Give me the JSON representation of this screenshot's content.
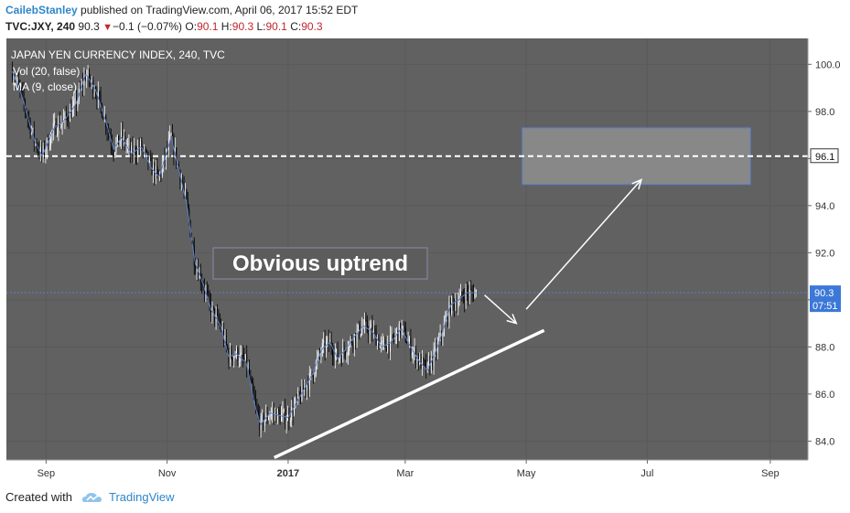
{
  "header": {
    "author": "CailebStanley",
    "published_text": "published on TradingView.com, April 06, 2017 15:52 EDT",
    "symbol": "TVC:JXY, 240",
    "last": "90.3",
    "change": "−0.1 (−0.07%)",
    "o_label": "O:",
    "o_value": "90.1",
    "h_label": "H:",
    "h_value": "90.3",
    "l_label": "L:",
    "l_value": "90.1",
    "c_label": "C:",
    "c_value": "90.3"
  },
  "chart_data": {
    "type": "candlestick",
    "title": "JAPAN YEN CURRENCY INDEX, 240, TVC",
    "indicators": [
      "Vol (20, false)",
      "MA (9, close)"
    ],
    "x_ticks": [
      "Sep",
      "Nov",
      "2017",
      "Mar",
      "May",
      "Jul",
      "Sep"
    ],
    "y_ticks": [
      84.0,
      86.0,
      88.0,
      90.0,
      92.0,
      94.0,
      96.0,
      98.0,
      100.0
    ],
    "ylim": [
      83.2,
      101.1
    ],
    "price_series": [
      [
        "2016-08-15",
        99.7
      ],
      [
        "2016-08-20",
        98.6
      ],
      [
        "2016-08-26",
        96.8
      ],
      [
        "2016-08-30",
        96.1
      ],
      [
        "2016-09-05",
        97.3
      ],
      [
        "2016-09-10",
        97.6
      ],
      [
        "2016-09-16",
        98.3
      ],
      [
        "2016-09-21",
        99.6
      ],
      [
        "2016-09-26",
        98.9
      ],
      [
        "2016-10-01",
        97.6
      ],
      [
        "2016-10-05",
        96.4
      ],
      [
        "2016-10-09",
        96.9
      ],
      [
        "2016-10-14",
        96.2
      ],
      [
        "2016-10-19",
        96.5
      ],
      [
        "2016-10-24",
        95.6
      ],
      [
        "2016-10-28",
        95.2
      ],
      [
        "2016-11-03",
        96.9
      ],
      [
        "2016-11-07",
        95.5
      ],
      [
        "2016-11-11",
        94.0
      ],
      [
        "2016-11-15",
        91.6
      ],
      [
        "2016-11-19",
        90.7
      ],
      [
        "2016-11-23",
        89.6
      ],
      [
        "2016-11-28",
        88.9
      ],
      [
        "2016-12-02",
        87.6
      ],
      [
        "2016-12-06",
        87.7
      ],
      [
        "2016-12-11",
        87.3
      ],
      [
        "2016-12-15",
        85.6
      ],
      [
        "2016-12-18",
        84.7
      ],
      [
        "2016-12-23",
        85.2
      ],
      [
        "2016-12-27",
        85.1
      ],
      [
        "2017-01-01",
        85.0
      ],
      [
        "2017-01-05",
        85.6
      ],
      [
        "2017-01-09",
        86.2
      ],
      [
        "2017-01-13",
        86.8
      ],
      [
        "2017-01-18",
        87.9
      ],
      [
        "2017-01-22",
        88.2
      ],
      [
        "2017-01-26",
        87.5
      ],
      [
        "2017-01-30",
        87.9
      ],
      [
        "2017-02-03",
        88.4
      ],
      [
        "2017-02-08",
        88.9
      ],
      [
        "2017-02-13",
        88.6
      ],
      [
        "2017-02-17",
        88.0
      ],
      [
        "2017-02-22",
        88.2
      ],
      [
        "2017-02-27",
        88.8
      ],
      [
        "2017-03-03",
        88.1
      ],
      [
        "2017-03-08",
        87.4
      ],
      [
        "2017-03-12",
        87.0
      ],
      [
        "2017-03-16",
        87.7
      ],
      [
        "2017-03-20",
        88.7
      ],
      [
        "2017-03-24",
        89.8
      ],
      [
        "2017-03-28",
        90.0
      ],
      [
        "2017-04-01",
        90.3
      ],
      [
        "2017-04-06",
        90.3
      ]
    ],
    "price_lines": [
      {
        "value": 96.1,
        "style": "dashed",
        "color": "#ffffff"
      },
      {
        "value": 90.3,
        "style": "dotted",
        "color": "#5b7fc9"
      }
    ],
    "last_price_label": "90.3",
    "countdown_label": "07:51",
    "level_label": "96.1",
    "target_zone": {
      "x_start": "2017-04-29",
      "x_end": "2017-08-22",
      "y_low": 94.9,
      "y_high": 97.3
    },
    "annotation_text": "Obvious uptrend",
    "trend_line": {
      "start": [
        "2016-12-25",
        83.3
      ],
      "end": [
        "2017-05-10",
        88.7
      ]
    },
    "arrows": [
      {
        "from": [
          "2017-04-10",
          90.2
        ],
        "to": [
          "2017-04-26",
          89.0
        ]
      },
      {
        "from": [
          "2017-05-01",
          89.6
        ],
        "to": [
          "2017-06-28",
          95.1
        ]
      }
    ],
    "colors": {
      "plot_background": "#616161",
      "axis_background": "#ffffff",
      "candle_up": "#ffffff",
      "candle_down": "#000000",
      "ma": "#5b7fc9",
      "price_badge": "#3c78d8",
      "zone_fill": "#888888",
      "zone_border": "#5b7fc9"
    }
  },
  "footer": {
    "created_with": "Created with",
    "brand": "TradingView"
  }
}
